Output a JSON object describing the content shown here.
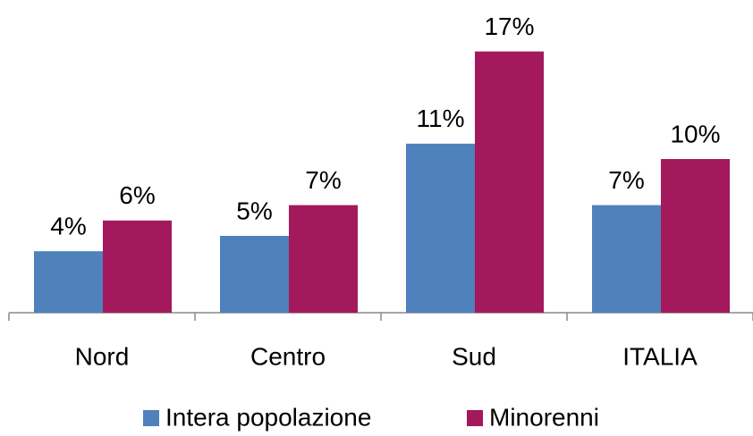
{
  "chart_data": {
    "type": "bar",
    "categories": [
      "Nord",
      "Centro",
      "Sud",
      "ITALIA"
    ],
    "series": [
      {
        "name": "Intera popolazione",
        "color": "#4f81bd",
        "values": [
          4,
          5,
          11,
          7
        ],
        "value_labels": [
          "4%",
          "5%",
          "11%",
          "7%"
        ]
      },
      {
        "name": "Minorenni",
        "color": "#a3195b",
        "values": [
          6,
          7,
          17,
          10
        ],
        "value_labels": [
          "6%",
          "7%",
          "17%",
          "10%"
        ]
      }
    ]
  }
}
